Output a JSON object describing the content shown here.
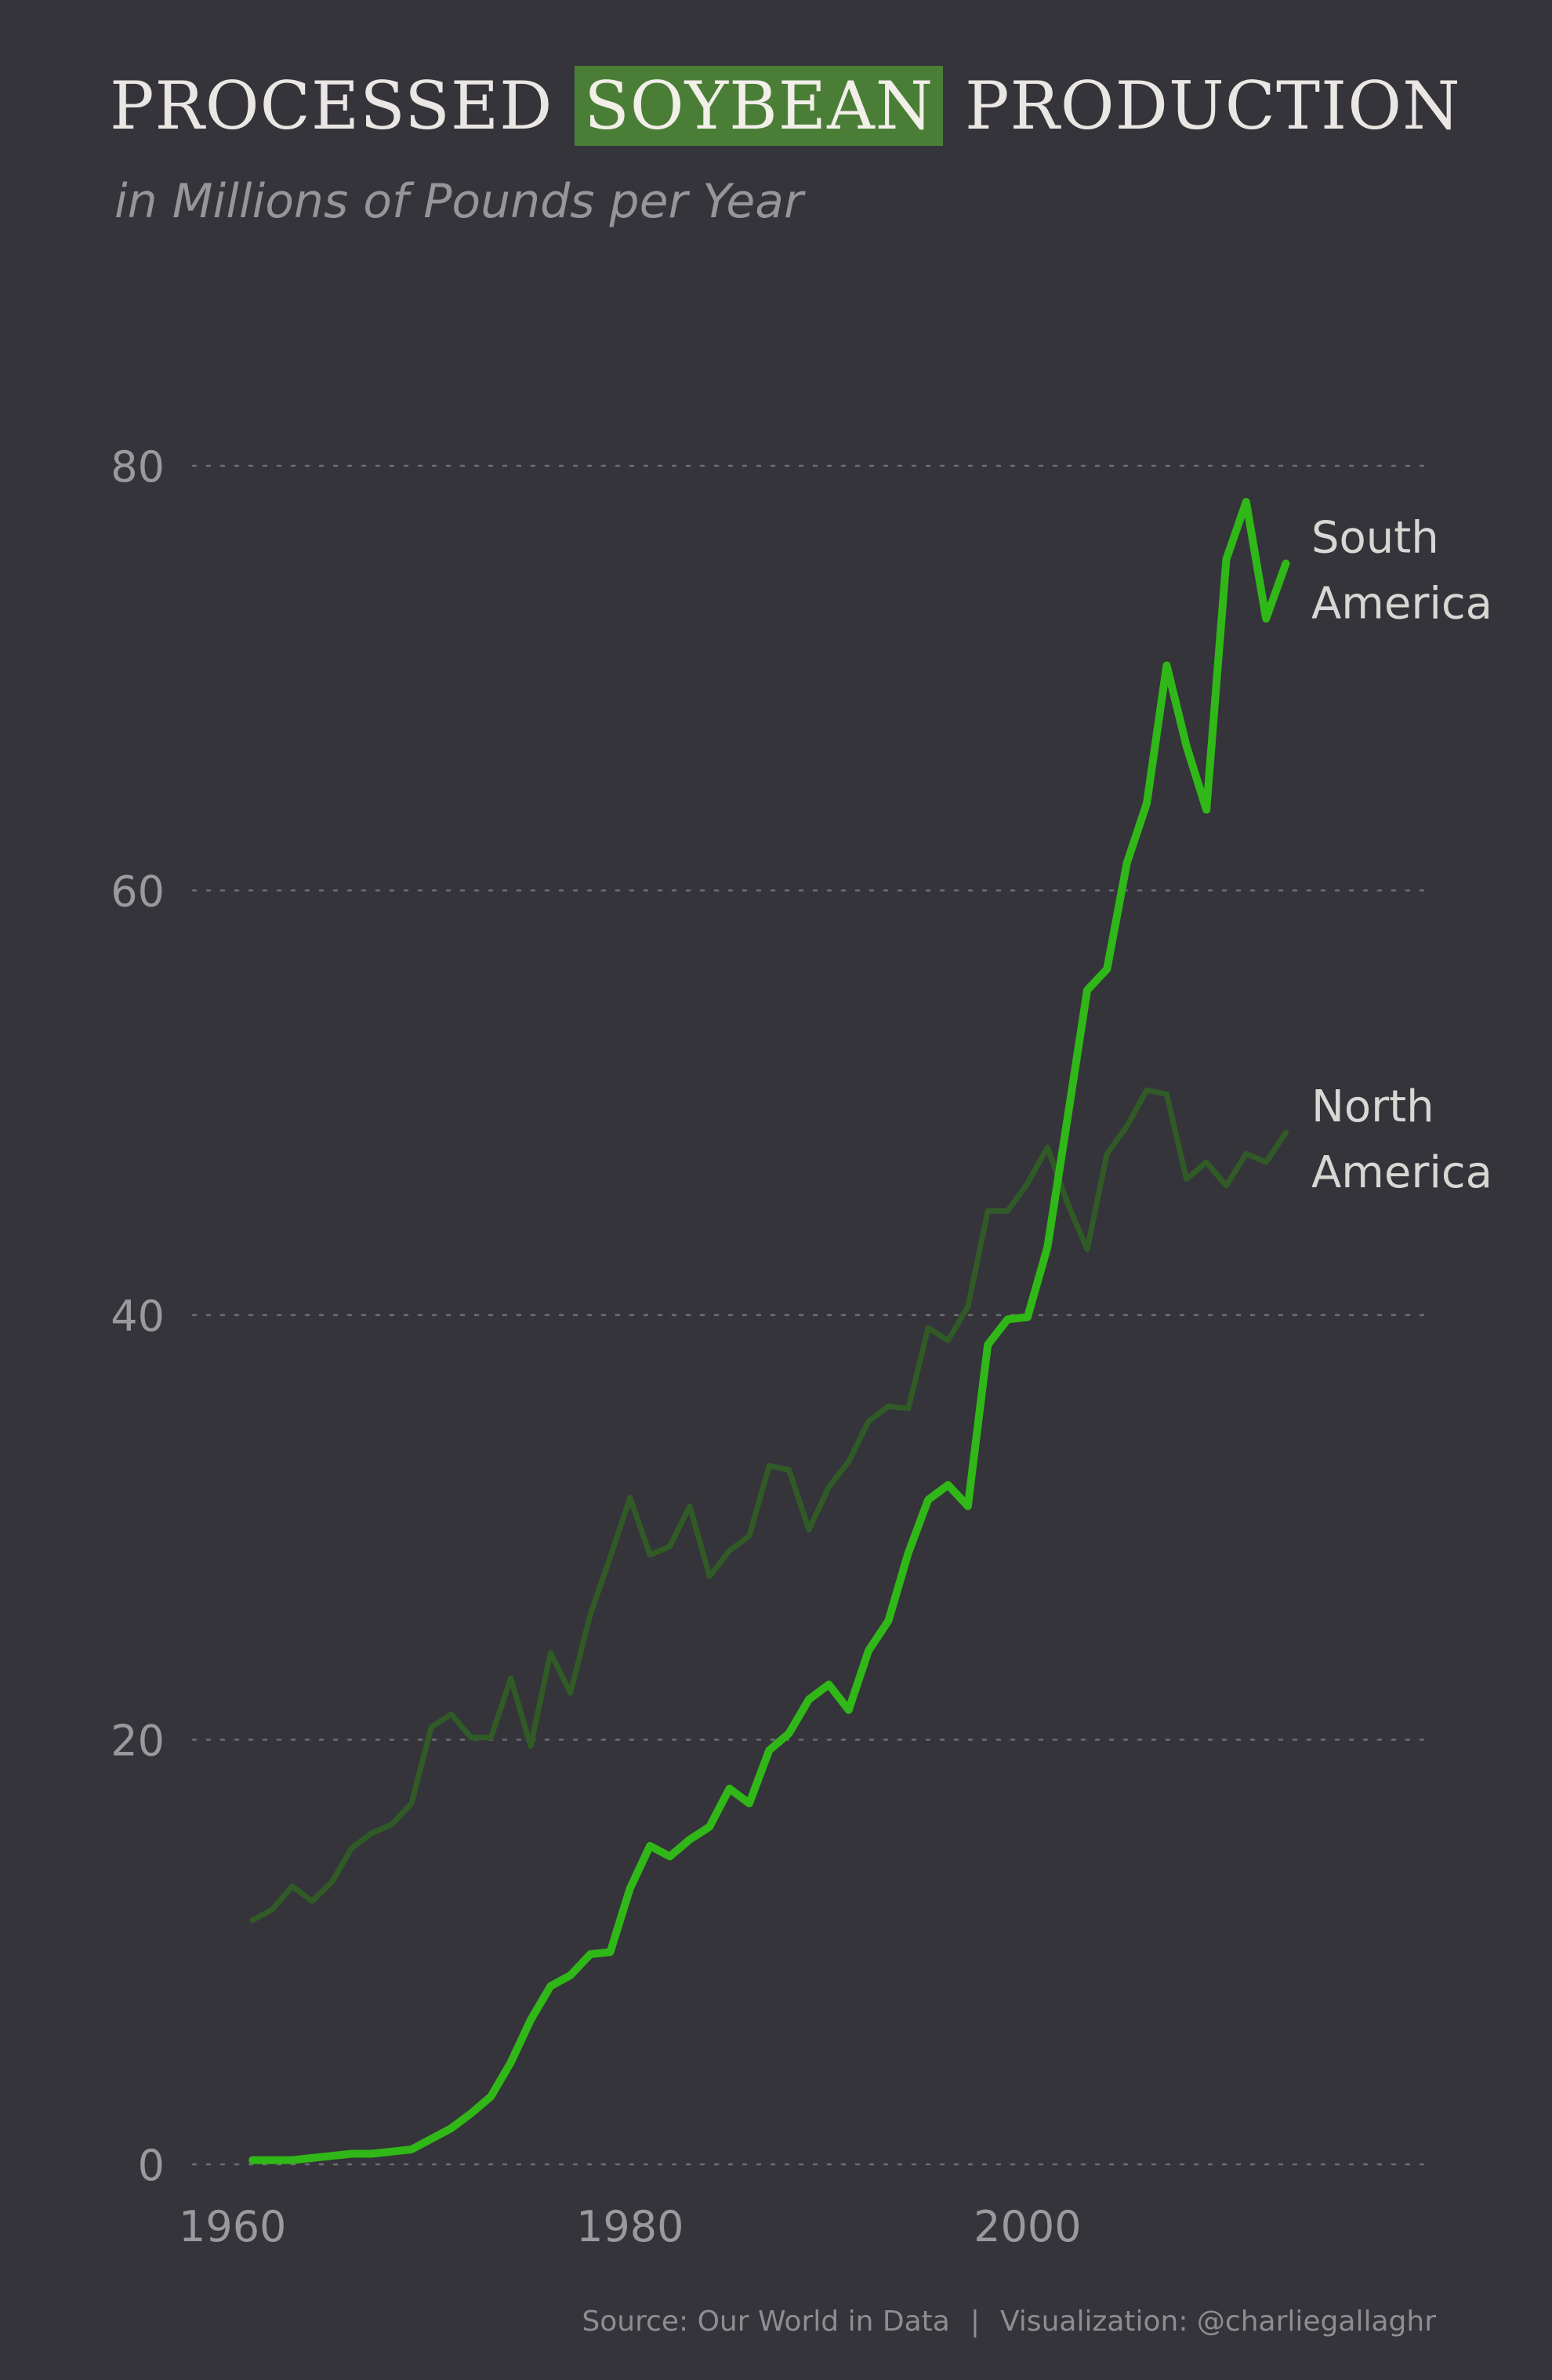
{
  "title": {
    "before": "PROCESSED",
    "highlight": "SOYBEAN",
    "after": "PRODUCTION"
  },
  "subtitle": "in Millions of Pounds per Year",
  "footer": {
    "source": "Source: Our World in Data",
    "separator": "|",
    "credit": "Visualization: @charliegallaghr"
  },
  "colors": {
    "background": "#35343a",
    "south_america": "#2fb817",
    "north_america": "#305b27",
    "highlight": "#4a7e36"
  },
  "chart_data": {
    "type": "line",
    "xlim": [
      1958,
      2020
    ],
    "ylim": [
      0,
      80
    ],
    "yticks": [
      0,
      20,
      40,
      60,
      80
    ],
    "xticks": [
      1960,
      1980,
      2000
    ],
    "grid": "horizontal-dotted",
    "series": [
      {
        "name": "South America",
        "label_lines": [
          "South",
          "America"
        ],
        "x": [
          1961,
          1962,
          1963,
          1964,
          1965,
          1966,
          1967,
          1968,
          1969,
          1970,
          1971,
          1972,
          1973,
          1974,
          1975,
          1976,
          1977,
          1978,
          1979,
          1980,
          1981,
          1982,
          1983,
          1984,
          1985,
          1986,
          1987,
          1988,
          1989,
          1990,
          1991,
          1992,
          1993,
          1994,
          1995,
          1996,
          1997,
          1998,
          1999,
          2000,
          2001,
          2002,
          2003,
          2004,
          2005,
          2006,
          2007,
          2008,
          2009,
          2010,
          2011,
          2012,
          2013
        ],
        "y": [
          0.2,
          0.2,
          0.2,
          0.3,
          0.4,
          0.5,
          0.5,
          0.6,
          0.7,
          1.2,
          1.7,
          2.4,
          3.2,
          4.8,
          6.8,
          8.4,
          8.9,
          9.9,
          10.0,
          13.0,
          15.0,
          14.5,
          15.3,
          15.9,
          17.7,
          17.0,
          19.5,
          20.3,
          21.9,
          22.6,
          21.4,
          24.2,
          25.6,
          28.8,
          31.3,
          32.0,
          31.0,
          38.6,
          39.8,
          39.9,
          43.2,
          49.2,
          55.3,
          56.3,
          61.3,
          64.1,
          70.6,
          66.8,
          63.8,
          75.6,
          78.3,
          72.8,
          75.4
        ]
      },
      {
        "name": "North America",
        "label_lines": [
          "North",
          "America"
        ],
        "x": [
          1961,
          1962,
          1963,
          1964,
          1965,
          1966,
          1967,
          1968,
          1969,
          1970,
          1971,
          1972,
          1973,
          1974,
          1975,
          1976,
          1977,
          1978,
          1979,
          1980,
          1981,
          1982,
          1983,
          1984,
          1985,
          1986,
          1987,
          1988,
          1989,
          1990,
          1991,
          1992,
          1993,
          1994,
          1995,
          1996,
          1997,
          1998,
          1999,
          2000,
          2001,
          2002,
          2003,
          2004,
          2005,
          2006,
          2007,
          2008,
          2009,
          2010,
          2011,
          2012,
          2013
        ],
        "y": [
          11.5,
          12.0,
          13.1,
          12.4,
          13.3,
          14.9,
          15.6,
          16.0,
          17.0,
          20.6,
          21.2,
          20.1,
          20.1,
          22.9,
          19.7,
          24.1,
          22.2,
          25.9,
          28.6,
          31.4,
          28.7,
          29.1,
          31.0,
          27.7,
          28.9,
          29.6,
          32.9,
          32.7,
          29.9,
          31.9,
          33.1,
          35.0,
          35.7,
          35.6,
          39.4,
          38.8,
          40.4,
          44.9,
          44.9,
          46.2,
          47.9,
          45.3,
          43.1,
          47.6,
          48.9,
          50.6,
          50.4,
          46.4,
          47.2,
          46.1,
          47.6,
          47.2,
          48.6
        ]
      }
    ]
  }
}
